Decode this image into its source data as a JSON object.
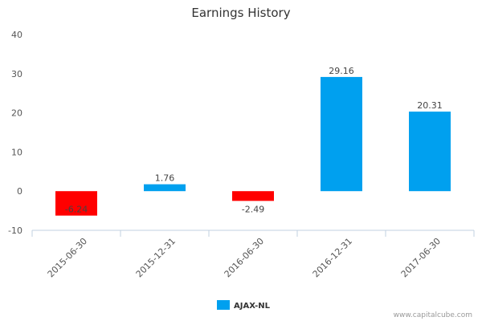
{
  "chart_data": {
    "type": "bar",
    "title": "Earnings History",
    "categories": [
      "2015-06-30",
      "2015-12-31",
      "2016-06-30",
      "2016-12-31",
      "2017-06-30"
    ],
    "series": [
      {
        "name": "AJAX-NL",
        "values": [
          -6.24,
          1.76,
          -2.49,
          29.16,
          20.31
        ]
      }
    ],
    "data_labels": [
      "-6.24",
      "1.76",
      "-2.49",
      "29.16",
      "20.31"
    ],
    "ylim": [
      -10,
      40
    ],
    "yticks": [
      "-10",
      "0",
      "10",
      "20",
      "30",
      "40"
    ],
    "grid": false,
    "legend_position": "bottom-center",
    "colors": {
      "positive": "#00a0ef",
      "negative": "#ff0000"
    }
  },
  "watermark": "www.capitalcube.com"
}
